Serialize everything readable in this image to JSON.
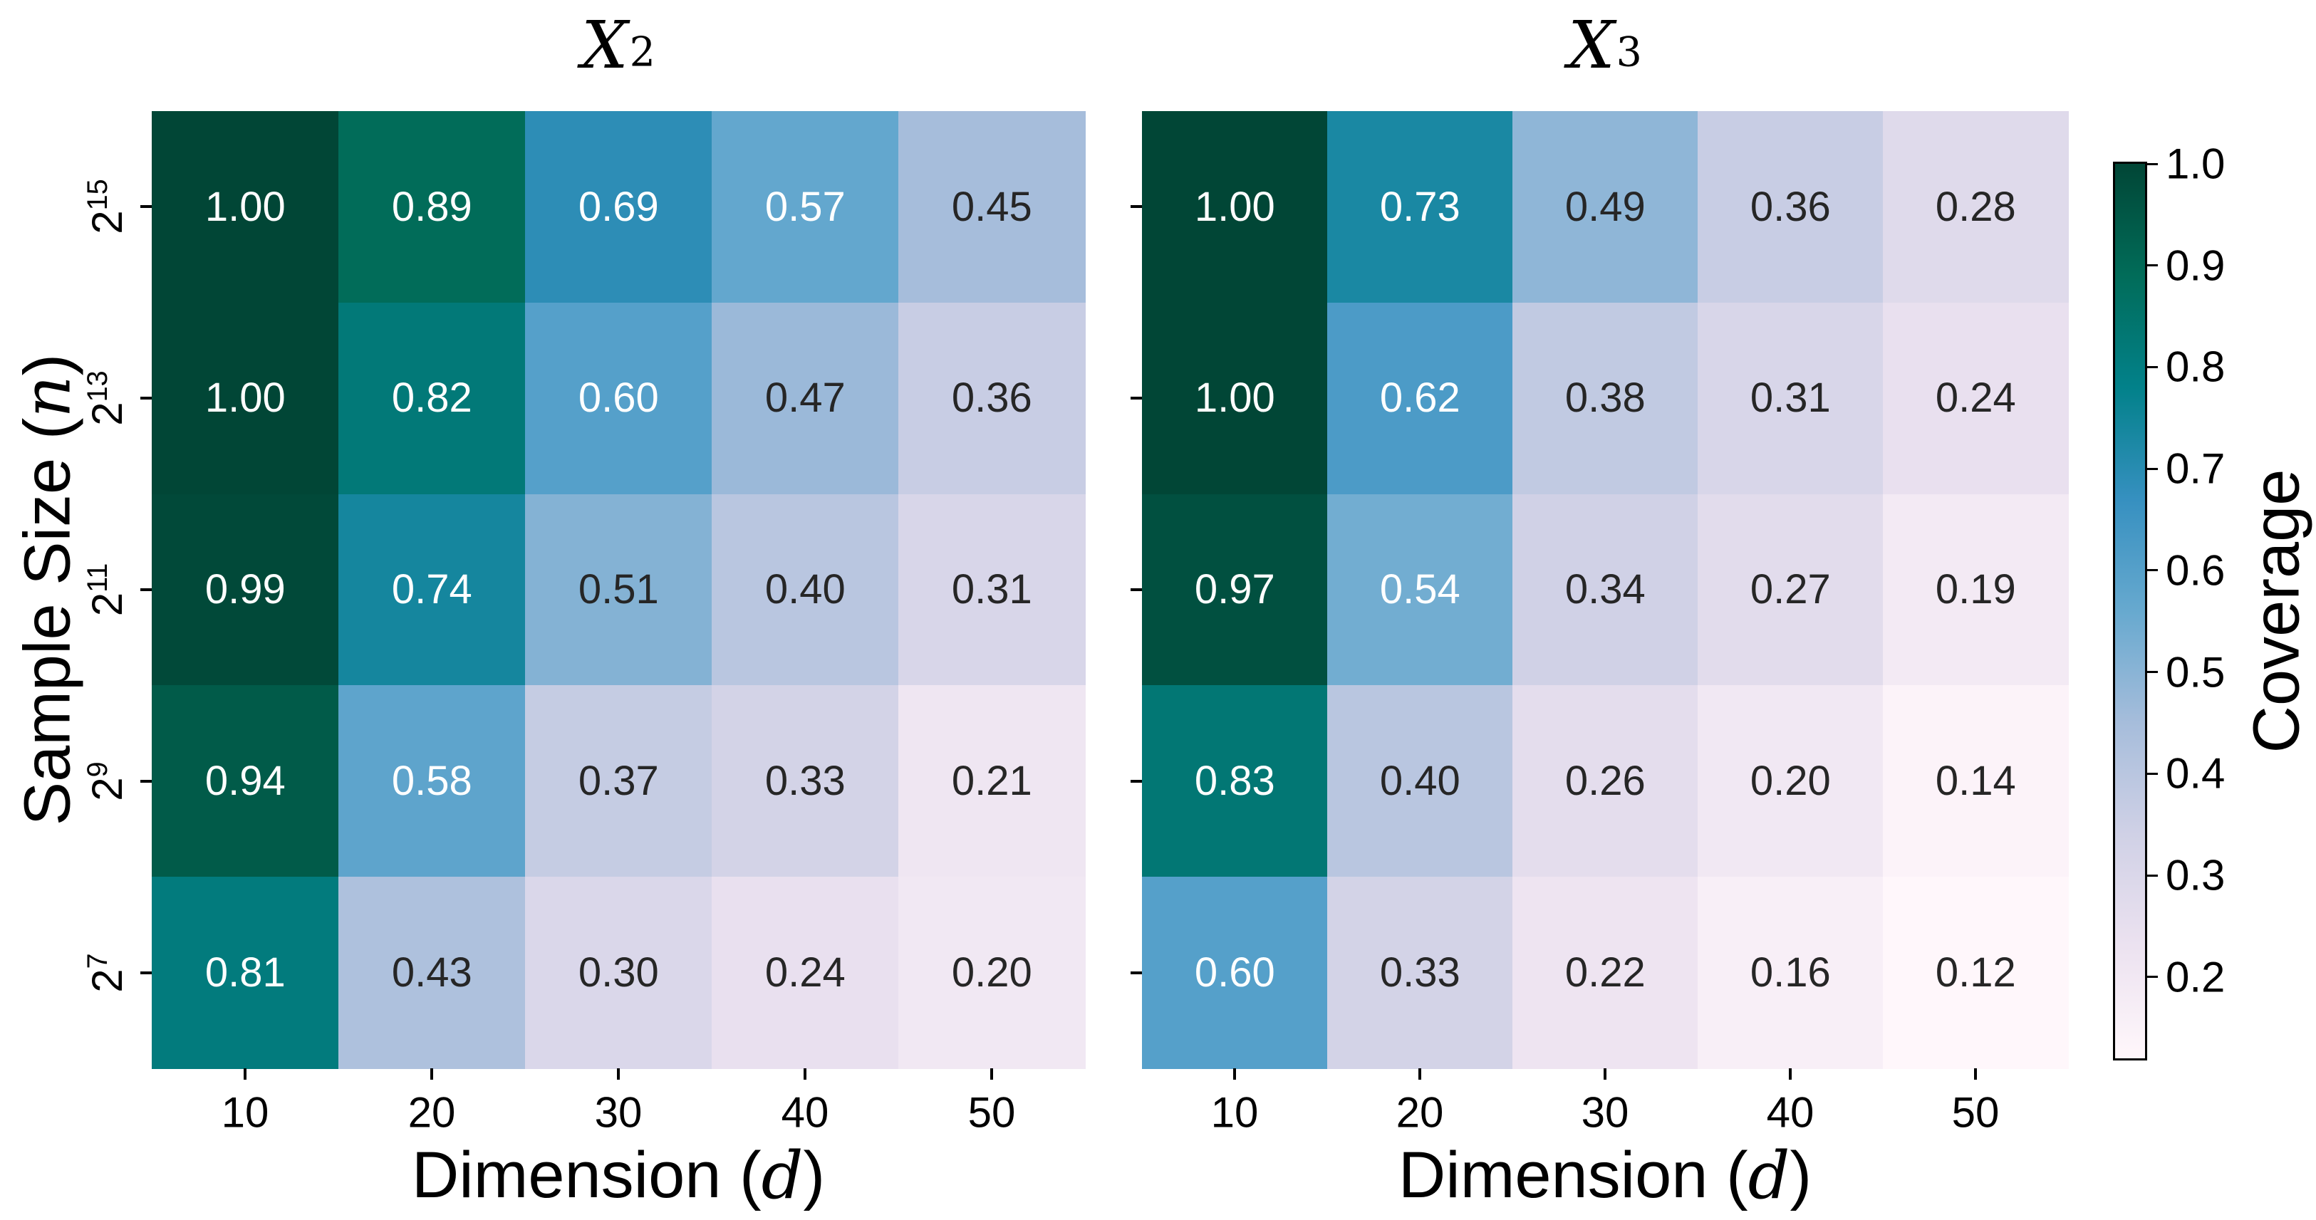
{
  "figure": {
    "background": "#ffffff",
    "annotation_text_dark": "#262626",
    "annotation_text_light": "#ffffff",
    "luminance_threshold": 0.408,
    "colormap": {
      "name": "PuBuGn",
      "stops": [
        "#fff7fb",
        "#ece2f0",
        "#d0d1e6",
        "#a6bddb",
        "#67a9cf",
        "#3690c0",
        "#02818a",
        "#016c59",
        "#014636"
      ],
      "vmin": 0.12,
      "vmax": 1.0
    }
  },
  "panels": [
    {
      "title_var": "X",
      "title_sub": "2"
    },
    {
      "title_var": "X",
      "title_sub": "3"
    }
  ],
  "axes": {
    "x_label_prefix": "Dimension (",
    "x_label_var": "d",
    "x_label_suffix": ")",
    "y_label_prefix": "Sample Size (",
    "y_label_var": "n",
    "y_label_suffix": ")",
    "x_ticks": [
      "10",
      "20",
      "30",
      "40",
      "50"
    ],
    "y_ticks": [
      {
        "base": "2",
        "exp": "15"
      },
      {
        "base": "2",
        "exp": "13"
      },
      {
        "base": "2",
        "exp": "11"
      },
      {
        "base": "2",
        "exp": "9"
      },
      {
        "base": "2",
        "exp": "7"
      }
    ]
  },
  "colorbar": {
    "label": "Coverage",
    "ticks": [
      {
        "label": "1.0",
        "value": 1.0
      },
      {
        "label": "0.9",
        "value": 0.9
      },
      {
        "label": "0.8",
        "value": 0.8
      },
      {
        "label": "0.7",
        "value": 0.7
      },
      {
        "label": "0.6",
        "value": 0.6
      },
      {
        "label": "0.5",
        "value": 0.5
      },
      {
        "label": "0.4",
        "value": 0.4
      },
      {
        "label": "0.3",
        "value": 0.3
      },
      {
        "label": "0.2",
        "value": 0.2
      }
    ]
  },
  "chart_data": [
    {
      "type": "heatmap",
      "title": "X_2",
      "x": [
        10,
        20,
        30,
        40,
        50
      ],
      "y": [
        "2^15",
        "2^13",
        "2^11",
        "2^9",
        "2^7"
      ],
      "xlabel": "Dimension (d)",
      "ylabel": "Sample Size (n)",
      "colormap": "PuBuGn",
      "vmin": 0.12,
      "vmax": 1.0,
      "colorbar_label": "Coverage",
      "values": [
        [
          1.0,
          0.89,
          0.69,
          0.57,
          0.45
        ],
        [
          1.0,
          0.82,
          0.6,
          0.47,
          0.36
        ],
        [
          0.99,
          0.74,
          0.51,
          0.4,
          0.31
        ],
        [
          0.94,
          0.58,
          0.37,
          0.33,
          0.21
        ],
        [
          0.81,
          0.43,
          0.3,
          0.24,
          0.2
        ]
      ]
    },
    {
      "type": "heatmap",
      "title": "X_3",
      "x": [
        10,
        20,
        30,
        40,
        50
      ],
      "y": [
        "2^15",
        "2^13",
        "2^11",
        "2^9",
        "2^7"
      ],
      "xlabel": "Dimension (d)",
      "ylabel": "Sample Size (n)",
      "colormap": "PuBuGn",
      "vmin": 0.12,
      "vmax": 1.0,
      "colorbar_label": "Coverage",
      "values": [
        [
          1.0,
          0.73,
          0.49,
          0.36,
          0.28
        ],
        [
          1.0,
          0.62,
          0.38,
          0.31,
          0.24
        ],
        [
          0.97,
          0.54,
          0.34,
          0.27,
          0.19
        ],
        [
          0.83,
          0.4,
          0.26,
          0.2,
          0.14
        ],
        [
          0.6,
          0.33,
          0.22,
          0.16,
          0.12
        ]
      ]
    }
  ]
}
